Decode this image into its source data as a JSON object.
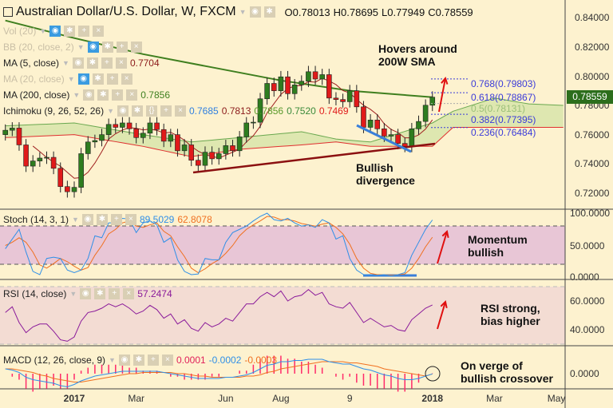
{
  "header": {
    "title": "Australian Dollar/U.S. Dollar, W, FXCM",
    "open": "O0.78013",
    "high": "H0.78695",
    "low": "L0.77949",
    "close": "C0.78559"
  },
  "legends": {
    "vol": "Vol (20)",
    "bb": "BB (20, close, 2)",
    "ma5": "MA (5, close)",
    "ma5_val": "0.7704",
    "ma20": "MA (20, close)",
    "ma200": "MA (200, close)",
    "ma200_val": "0.7856",
    "ichimoku": "Ichimoku (9, 26, 52, 26)",
    "ichi_vals": [
      "0.7685",
      "0.7813",
      "0.7856",
      "0.7520",
      "0.7469"
    ],
    "stoch": "Stoch (14, 3, 1)",
    "stoch_k": "89.5029",
    "stoch_d": "62.8078",
    "rsi": "RSI (14, close)",
    "rsi_val": "57.2474",
    "macd": "MACD (12, 26, close, 9)",
    "macd_hist": "0.0001",
    "macd_line": "-0.0002",
    "macd_signal": "-0.0003"
  },
  "annotations": {
    "sma": "Hovers around 200W SMA",
    "div": "Bullish divergence",
    "mom": "Momentum bullish",
    "rsi": "RSI strong, bias higher",
    "macd": "On verge of bullish crossover"
  },
  "fib": [
    "0.768(0.79803)",
    "0.618(0.78867)",
    "0.5(0.78131)",
    "0.382(0.77395)",
    "0.236(0.76484)"
  ],
  "price_badge": "0.78559",
  "colors": {
    "bg": "#fdf2cf",
    "up": "#2e7d1f",
    "down": "#e01a1a",
    "ma200": "#3f7f1f",
    "cloud": "#d6e3a8",
    "stoch_band": "#e8c6d6",
    "rsi_band": "#f3dcd3"
  },
  "chart_data": {
    "type": "candlestick",
    "title": "Australian Dollar/U.S. Dollar, W, FXCM",
    "price_axis": [
      "0.84000",
      "0.82000",
      "0.80000",
      "0.78000",
      "0.76000",
      "0.74000",
      "0.72000"
    ],
    "ylim": [
      0.713,
      0.852
    ],
    "time_axis": [
      {
        "label": "2017",
        "idx": 10,
        "bold": true
      },
      {
        "label": "Mar",
        "idx": 19
      },
      {
        "label": "Jun",
        "idx": 32
      },
      {
        "label": "Aug",
        "idx": 40
      },
      {
        "label": "9",
        "idx": 50
      },
      {
        "label": "2018",
        "idx": 62,
        "bold": true
      },
      {
        "label": "Mar",
        "idx": 71
      },
      {
        "label": "May",
        "idx": 80
      }
    ],
    "closes": [
      0.763,
      0.7645,
      0.753,
      0.7385,
      0.742,
      0.744,
      0.7445,
      0.737,
      0.7245,
      0.721,
      0.724,
      0.747,
      0.755,
      0.756,
      0.76,
      0.767,
      0.765,
      0.768,
      0.764,
      0.758,
      0.761,
      0.768,
      0.7635,
      0.7555,
      0.76,
      0.749,
      0.753,
      0.7425,
      0.739,
      0.748,
      0.7435,
      0.747,
      0.7525,
      0.749,
      0.7585,
      0.768,
      0.7685,
      0.7845,
      0.795,
      0.79,
      0.7995,
      0.788,
      0.794,
      0.7965,
      0.803,
      0.798,
      0.801,
      0.785,
      0.784,
      0.7825,
      0.79,
      0.779,
      0.765,
      0.77,
      0.764,
      0.759,
      0.76,
      0.754,
      0.752,
      0.764,
      0.769,
      0.7801,
      0.7856
    ],
    "first_open": 0.76,
    "ma200": [
      [
        0,
        0.838
      ],
      [
        10,
        0.826
      ],
      [
        20,
        0.815
      ],
      [
        30,
        0.806
      ],
      [
        40,
        0.797
      ],
      [
        50,
        0.79
      ],
      [
        62,
        0.7856
      ]
    ],
    "cloud": [
      [
        0,
        0.766,
        0.758
      ],
      [
        10,
        0.768,
        0.76
      ],
      [
        20,
        0.76,
        0.752
      ],
      [
        27,
        0.755,
        0.745
      ],
      [
        34,
        0.758,
        0.75
      ],
      [
        43,
        0.762,
        0.753
      ],
      [
        48,
        0.757,
        0.755
      ],
      [
        53,
        0.755,
        0.752
      ],
      [
        62,
        0.768,
        0.752
      ],
      [
        65,
        0.776,
        0.765
      ],
      [
        71,
        0.785,
        0.765
      ],
      [
        76,
        0.781,
        0.765
      ],
      [
        81,
        0.78,
        0.765
      ]
    ],
    "stoch_k": [
      45,
      60,
      75,
      40,
      10,
      5,
      30,
      32,
      30,
      12,
      8,
      12,
      30,
      65,
      62,
      85,
      85,
      92,
      91,
      70,
      85,
      88,
      82,
      55,
      62,
      28,
      10,
      5,
      6,
      30,
      28,
      28,
      55,
      70,
      75,
      80,
      88,
      95,
      100,
      90,
      88,
      92,
      85,
      80,
      82,
      78,
      90,
      85,
      60,
      65,
      30,
      12,
      5,
      4,
      4,
      5,
      3,
      5,
      8,
      35,
      55,
      75,
      89.5029
    ],
    "stoch_d": [
      50,
      55,
      62,
      55,
      40,
      20,
      15,
      22,
      30,
      25,
      18,
      12,
      16,
      35,
      50,
      68,
      75,
      85,
      88,
      80,
      78,
      82,
      85,
      72,
      65,
      48,
      33,
      15,
      8,
      14,
      22,
      28,
      38,
      50,
      65,
      75,
      82,
      88,
      95,
      94,
      90,
      90,
      88,
      84,
      82,
      80,
      83,
      85,
      78,
      68,
      52,
      30,
      15,
      7,
      5,
      5,
      4,
      5,
      6,
      15,
      30,
      48,
      62.8078
    ],
    "stoch_axis": [
      "100.0000",
      "50.0000",
      "0.0000"
    ],
    "rsi": [
      52,
      56,
      45,
      38,
      42,
      44,
      44,
      39,
      33,
      32,
      35,
      46,
      52,
      53,
      55,
      58,
      56,
      58,
      55,
      51,
      53,
      57,
      54,
      48,
      51,
      44,
      47,
      41,
      39,
      45,
      42,
      44,
      48,
      46,
      52,
      58,
      58,
      63,
      66,
      63,
      67,
      60,
      63,
      64,
      68,
      64,
      66,
      58,
      56,
      55,
      59,
      52,
      45,
      48,
      45,
      42,
      43,
      40,
      39,
      47,
      51,
      55,
      57.2474
    ],
    "rsi_axis": [
      "60.0000",
      "40.0000"
    ],
    "macd": [
      0.004,
      0.003,
      0.001,
      -0.003,
      -0.005,
      -0.006,
      -0.007,
      -0.008,
      -0.01,
      -0.011,
      -0.009,
      -0.006,
      -0.004,
      -0.002,
      -0.001,
      0.0,
      0.001,
      0.002,
      0.002,
      0.002,
      0.002,
      0.002,
      0.002,
      0.001,
      0.0,
      -0.001,
      -0.002,
      -0.003,
      -0.004,
      -0.004,
      -0.004,
      -0.004,
      -0.003,
      -0.003,
      -0.002,
      -0.001,
      0.001,
      0.004,
      0.007,
      0.008,
      0.01,
      0.01,
      0.011,
      0.011,
      0.012,
      0.012,
      0.012,
      0.01,
      0.009,
      0.008,
      0.008,
      0.006,
      0.004,
      0.003,
      0.001,
      -0.001,
      -0.002,
      -0.004,
      -0.005,
      -0.005,
      -0.004,
      -0.002,
      -0.0002
    ],
    "macd_signal": [
      0.004,
      0.004,
      0.003,
      0.002,
      0.001,
      -0.001,
      -0.002,
      -0.004,
      -0.005,
      -0.006,
      -0.007,
      -0.007,
      -0.006,
      -0.005,
      -0.004,
      -0.003,
      -0.002,
      -0.001,
      0.0,
      0.0,
      0.001,
      0.001,
      0.001,
      0.001,
      0.001,
      0.0,
      0.0,
      -0.001,
      -0.002,
      -0.002,
      -0.003,
      -0.003,
      -0.003,
      -0.003,
      -0.003,
      -0.002,
      -0.002,
      -0.001,
      0.001,
      0.002,
      0.004,
      0.005,
      0.006,
      0.007,
      0.008,
      0.009,
      0.01,
      0.01,
      0.01,
      0.01,
      0.009,
      0.009,
      0.008,
      0.007,
      0.006,
      0.004,
      0.003,
      0.002,
      0.001,
      0.0,
      -0.001,
      -0.002,
      -0.0003
    ],
    "macd_axis": [
      "0.0000"
    ]
  }
}
